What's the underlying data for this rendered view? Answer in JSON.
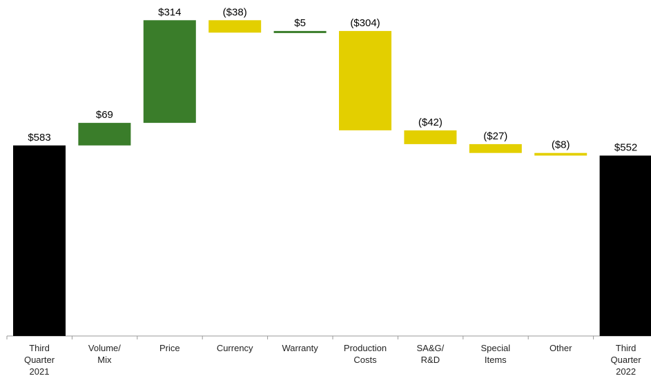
{
  "chart_data": {
    "type": "bar",
    "subtype": "waterfall",
    "title": "",
    "xlabel": "",
    "ylabel": "",
    "ylim": [
      0,
      941
    ],
    "grid": false,
    "legend": "none",
    "colors": {
      "total": "#000000",
      "increase": "#3a7d2a",
      "decrease": "#e3cf00",
      "axis": "#999999"
    },
    "steps": [
      {
        "category": [
          "Third",
          "Quarter",
          "2021"
        ],
        "value": 583,
        "label": "$583",
        "kind": "total"
      },
      {
        "category": [
          "Volume/",
          "Mix"
        ],
        "value": 69,
        "label": "$69",
        "kind": "increase"
      },
      {
        "category": [
          "Price"
        ],
        "value": 314,
        "label": "$314",
        "kind": "increase"
      },
      {
        "category": [
          "Currency"
        ],
        "value": -38,
        "label": "($38)",
        "kind": "decrease"
      },
      {
        "category": [
          "Warranty"
        ],
        "value": 5,
        "label": "$5",
        "kind": "increase"
      },
      {
        "category": [
          "Production",
          "Costs"
        ],
        "value": -304,
        "label": "($304)",
        "kind": "decrease"
      },
      {
        "category": [
          "SA&G/",
          "R&D"
        ],
        "value": -42,
        "label": "($42)",
        "kind": "decrease"
      },
      {
        "category": [
          "Special",
          "Items"
        ],
        "value": -27,
        "label": "($27)",
        "kind": "decrease"
      },
      {
        "category": [
          "Other"
        ],
        "value": -8,
        "label": "($8)",
        "kind": "decrease"
      },
      {
        "category": [
          "Third",
          "Quarter",
          "2022"
        ],
        "value": 552,
        "label": "$552",
        "kind": "total"
      }
    ]
  }
}
